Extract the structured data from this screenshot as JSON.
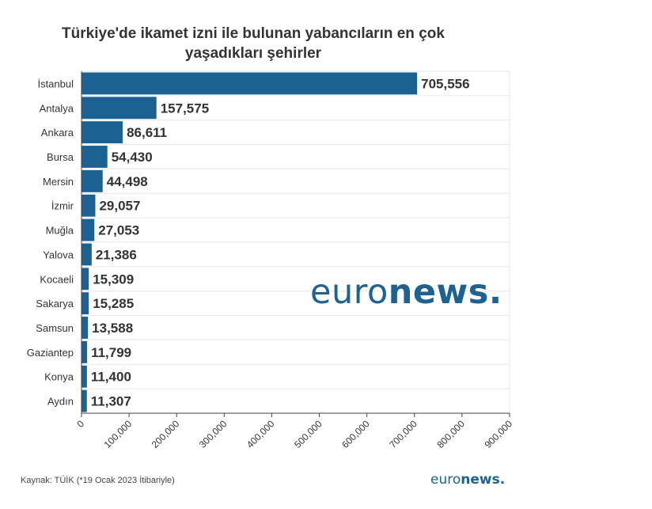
{
  "title": "Türkiye'de ikamet izni ile bulunan yabancıların en çok yaşadıkları şehirler",
  "source": "Kaynak: TÜİK (*19 Ocak 2023 İtibariyle)",
  "watermark": {
    "euro": "euro",
    "news": "news."
  },
  "footer_logo": {
    "euro": "euro",
    "news": "news."
  },
  "colors": {
    "bar": "#1b6292",
    "grid": "#e6e6e6",
    "text": "#333333",
    "brand": "#1d6291"
  },
  "chart_data": {
    "type": "bar",
    "orientation": "horizontal",
    "title": "Türkiye'de ikamet izni ile bulunan yabancıların en çok yaşadıkları şehirler",
    "categories": [
      "İstanbul",
      "Antalya",
      "Ankara",
      "Bursa",
      "Mersin",
      "İzmir",
      "Muğla",
      "Yalova",
      "Kocaeli",
      "Sakarya",
      "Samsun",
      "Gaziantep",
      "Konya",
      "Aydın"
    ],
    "values": [
      705556,
      157575,
      86611,
      54430,
      44498,
      29057,
      27053,
      21386,
      15309,
      15285,
      13588,
      11799,
      11400,
      11307
    ],
    "value_labels": [
      "705,556",
      "157,575",
      "86,611",
      "54,430",
      "44,498",
      "29,057",
      "27,053",
      "21,386",
      "15,309",
      "15,285",
      "13,588",
      "11,799",
      "11,400",
      "11,307"
    ],
    "xlim": [
      0,
      900000
    ],
    "xticks": [
      0,
      100000,
      200000,
      300000,
      400000,
      500000,
      600000,
      700000,
      800000,
      900000
    ],
    "xtick_labels": [
      "0",
      "100,000",
      "200,000",
      "300,000",
      "400,000",
      "500,000",
      "600,000",
      "700,000",
      "800,000",
      "900,000"
    ],
    "xlabel": "",
    "ylabel": "",
    "grid": true,
    "legend": "none"
  }
}
